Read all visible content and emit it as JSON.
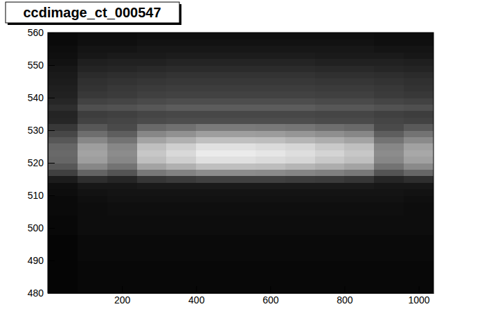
{
  "chart_data": {
    "type": "heatmap",
    "title": "ccdimage_ct_000547",
    "xlim": [
      0,
      1040
    ],
    "xticks": [
      200,
      400,
      600,
      800,
      1000
    ],
    "ylim": [
      480,
      560
    ],
    "yticks": [
      480,
      490,
      500,
      510,
      520,
      530,
      540,
      550,
      560
    ],
    "zlim": [
      0,
      100
    ],
    "x_bins": [
      0,
      80,
      160,
      240,
      320,
      400,
      480,
      560,
      640,
      720,
      800,
      880,
      960,
      1040
    ],
    "y_bins": [
      480,
      482,
      484,
      486,
      488,
      490,
      492,
      494,
      496,
      498,
      500,
      502,
      504,
      506,
      508,
      510,
      512,
      514,
      516,
      518,
      520,
      522,
      524,
      526,
      528,
      530,
      532,
      534,
      536,
      538,
      540,
      542,
      544,
      546,
      548,
      550,
      552,
      554,
      556,
      558,
      560
    ],
    "values": [
      [
        2,
        3,
        3,
        3,
        3,
        3,
        3,
        3,
        3,
        3,
        3,
        3,
        3
      ],
      [
        2,
        3,
        3,
        3,
        3,
        3,
        3,
        3,
        3,
        3,
        3,
        3,
        3
      ],
      [
        2,
        3,
        3,
        3,
        3,
        3,
        3,
        3,
        3,
        3,
        3,
        3,
        3
      ],
      [
        2,
        3,
        3,
        3,
        3,
        3,
        3,
        3,
        3,
        3,
        3,
        3,
        3
      ],
      [
        2,
        3,
        3,
        3,
        3,
        3,
        3,
        3,
        3,
        3,
        3,
        3,
        3
      ],
      [
        2,
        4,
        4,
        4,
        4,
        4,
        4,
        4,
        4,
        4,
        4,
        4,
        4
      ],
      [
        2,
        4,
        4,
        4,
        4,
        4,
        4,
        4,
        4,
        4,
        4,
        4,
        4
      ],
      [
        2,
        4,
        4,
        4,
        4,
        4,
        4,
        4,
        4,
        4,
        4,
        4,
        4
      ],
      [
        2,
        4,
        4,
        4,
        4,
        4,
        4,
        4,
        4,
        4,
        4,
        4,
        4
      ],
      [
        3,
        5,
        5,
        5,
        5,
        5,
        5,
        5,
        5,
        5,
        5,
        5,
        5
      ],
      [
        3,
        5,
        5,
        5,
        5,
        5,
        5,
        5,
        5,
        5,
        5,
        5,
        5
      ],
      [
        3,
        5,
        5,
        5,
        5,
        5,
        5,
        5,
        5,
        5,
        5,
        5,
        5
      ],
      [
        4,
        5,
        6,
        6,
        6,
        6,
        6,
        6,
        6,
        6,
        6,
        6,
        5
      ],
      [
        4,
        5,
        6,
        6,
        6,
        6,
        6,
        6,
        6,
        6,
        6,
        6,
        5
      ],
      [
        4,
        6,
        7,
        7,
        7,
        7,
        7,
        7,
        7,
        7,
        7,
        7,
        6
      ],
      [
        5,
        7,
        8,
        8,
        8,
        8,
        8,
        8,
        8,
        8,
        8,
        8,
        7
      ],
      [
        6,
        9,
        9,
        10,
        10,
        10,
        10,
        10,
        10,
        10,
        10,
        9,
        9
      ],
      [
        11,
        18,
        15,
        21,
        23,
        25,
        25,
        25,
        24,
        23,
        21,
        15,
        18
      ],
      [
        25,
        39,
        33,
        47,
        51,
        55,
        55,
        54,
        52,
        50,
        47,
        33,
        40
      ],
      [
        34,
        53,
        45,
        64,
        69,
        75,
        75,
        74,
        71,
        68,
        64,
        45,
        54
      ],
      [
        40,
        62,
        53,
        75,
        81,
        88,
        88,
        86,
        84,
        79,
        75,
        53,
        63
      ],
      [
        41,
        64,
        55,
        78,
        85,
        92,
        92,
        90,
        87,
        83,
        78,
        55,
        66
      ],
      [
        40,
        62,
        53,
        75,
        81,
        88,
        88,
        86,
        84,
        79,
        75,
        53,
        63
      ],
      [
        34,
        53,
        45,
        64,
        69,
        75,
        75,
        74,
        71,
        68,
        64,
        45,
        54
      ],
      [
        28,
        43,
        37,
        53,
        57,
        62,
        62,
        61,
        59,
        56,
        53,
        37,
        45
      ],
      [
        22,
        34,
        29,
        41,
        44,
        48,
        48,
        47,
        46,
        43,
        41,
        29,
        35
      ],
      [
        15,
        26,
        27,
        29,
        30,
        30,
        30,
        30,
        30,
        29,
        29,
        27,
        26
      ],
      [
        14,
        24,
        25,
        27,
        28,
        28,
        28,
        28,
        28,
        27,
        27,
        25,
        24
      ],
      [
        18,
        31,
        32,
        34,
        36,
        36,
        36,
        36,
        36,
        34,
        34,
        32,
        31
      ],
      [
        15,
        26,
        27,
        29,
        30,
        30,
        30,
        30,
        30,
        29,
        29,
        27,
        26
      ],
      [
        13,
        22,
        23,
        25,
        26,
        26,
        26,
        26,
        26,
        25,
        25,
        23,
        22
      ],
      [
        12,
        20,
        22,
        23,
        24,
        24,
        24,
        24,
        24,
        23,
        23,
        22,
        20
      ],
      [
        11,
        19,
        20,
        21,
        22,
        22,
        22,
        22,
        22,
        21,
        21,
        20,
        19
      ],
      [
        10,
        17,
        18,
        19,
        20,
        20,
        20,
        20,
        20,
        19,
        19,
        18,
        17
      ],
      [
        9,
        14,
        15,
        16,
        17,
        17,
        17,
        17,
        17,
        16,
        16,
        15,
        14
      ],
      [
        7,
        12,
        13,
        13,
        14,
        14,
        14,
        14,
        14,
        13,
        13,
        13,
        12
      ],
      [
        6,
        9,
        10,
        10,
        11,
        11,
        11,
        11,
        11,
        10,
        10,
        10,
        9
      ],
      [
        5,
        8,
        8,
        9,
        9,
        9,
        9,
        9,
        9,
        9,
        9,
        8,
        8
      ],
      [
        4,
        6,
        6,
        7,
        7,
        7,
        7,
        7,
        7,
        7,
        7,
        6,
        6
      ],
      [
        4,
        5,
        5,
        6,
        6,
        6,
        6,
        6,
        6,
        6,
        6,
        5,
        5
      ]
    ]
  }
}
